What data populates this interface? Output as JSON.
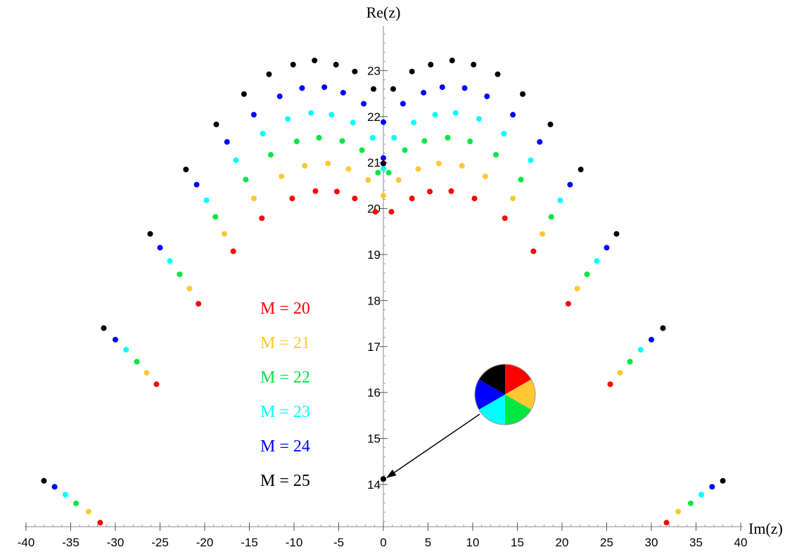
{
  "chart_data": {
    "type": "scatter",
    "xlabel": "Im(z)",
    "ylabel": "Re(z)",
    "xlim": [
      -40,
      40
    ],
    "ylim": [
      13.2,
      23.9
    ],
    "x_ticks": [
      -40,
      -35,
      -30,
      -25,
      -20,
      -15,
      -10,
      -5,
      0,
      5,
      10,
      15,
      20,
      25,
      30,
      35,
      40
    ],
    "y_ticks": [
      14,
      15,
      16,
      17,
      18,
      19,
      20,
      21,
      22,
      23
    ],
    "grid": false,
    "legend_position": "left-center",
    "series": [
      {
        "name": "M = 20",
        "color": "#ff0000",
        "points": [
          [
            -31.7,
            13.17
          ],
          [
            -25.4,
            16.18
          ],
          [
            -20.7,
            17.93
          ],
          [
            -16.8,
            19.07
          ],
          [
            -13.6,
            19.79
          ],
          [
            -10.2,
            20.22
          ],
          [
            -7.6,
            20.38
          ],
          [
            -5.2,
            20.37
          ],
          [
            -3.2,
            20.22
          ],
          [
            -0.9,
            19.93
          ],
          [
            0.9,
            19.93
          ],
          [
            3.2,
            20.22
          ],
          [
            5.2,
            20.37
          ],
          [
            7.6,
            20.38
          ],
          [
            10.2,
            20.22
          ],
          [
            13.6,
            19.79
          ],
          [
            16.8,
            19.07
          ],
          [
            20.7,
            17.93
          ],
          [
            25.4,
            16.18
          ],
          [
            31.7,
            13.17
          ],
          [
            0,
            14.12
          ]
        ]
      },
      {
        "name": "M = 21",
        "color": "#ffc832",
        "points": [
          [
            -33.0,
            13.41
          ],
          [
            -26.5,
            16.43
          ],
          [
            -21.7,
            18.26
          ],
          [
            -17.8,
            19.45
          ],
          [
            -14.5,
            20.22
          ],
          [
            -11.4,
            20.7
          ],
          [
            -8.8,
            20.93
          ],
          [
            -6.2,
            20.98
          ],
          [
            -3.9,
            20.86
          ],
          [
            -1.7,
            20.62
          ],
          [
            0,
            20.28
          ],
          [
            1.7,
            20.62
          ],
          [
            3.9,
            20.86
          ],
          [
            6.2,
            20.98
          ],
          [
            8.8,
            20.93
          ],
          [
            11.4,
            20.7
          ],
          [
            14.5,
            20.22
          ],
          [
            17.8,
            19.45
          ],
          [
            21.7,
            18.26
          ],
          [
            26.5,
            16.43
          ],
          [
            33.0,
            13.41
          ],
          [
            0,
            14.12
          ]
        ]
      },
      {
        "name": "M = 22",
        "color": "#00e641",
        "points": [
          [
            -34.4,
            13.59
          ],
          [
            -27.6,
            16.67
          ],
          [
            -22.8,
            18.57
          ],
          [
            -18.8,
            19.82
          ],
          [
            -15.4,
            20.63
          ],
          [
            -12.6,
            21.17
          ],
          [
            -9.7,
            21.46
          ],
          [
            -7.2,
            21.54
          ],
          [
            -4.6,
            21.47
          ],
          [
            -2.4,
            21.27
          ],
          [
            -0.6,
            20.78
          ],
          [
            0.6,
            20.78
          ],
          [
            2.4,
            21.27
          ],
          [
            4.6,
            21.47
          ],
          [
            7.2,
            21.54
          ],
          [
            9.7,
            21.46
          ],
          [
            12.6,
            21.17
          ],
          [
            15.4,
            20.63
          ],
          [
            18.8,
            19.82
          ],
          [
            22.8,
            18.57
          ],
          [
            27.6,
            16.67
          ],
          [
            34.4,
            13.59
          ],
          [
            0,
            14.12
          ]
        ]
      },
      {
        "name": "M = 23",
        "color": "#00ffff",
        "points": [
          [
            -35.6,
            13.78
          ],
          [
            -28.8,
            16.93
          ],
          [
            -23.9,
            18.86
          ],
          [
            -19.8,
            20.18
          ],
          [
            -16.5,
            21.05
          ],
          [
            -13.5,
            21.63
          ],
          [
            -10.7,
            21.95
          ],
          [
            -8.1,
            22.08
          ],
          [
            -5.8,
            22.04
          ],
          [
            -3.4,
            21.87
          ],
          [
            -1.2,
            21.54
          ],
          [
            0,
            20.87
          ],
          [
            1.2,
            21.54
          ],
          [
            3.4,
            21.87
          ],
          [
            5.8,
            22.04
          ],
          [
            8.1,
            22.08
          ],
          [
            10.7,
            21.95
          ],
          [
            13.5,
            21.63
          ],
          [
            16.5,
            21.05
          ],
          [
            19.8,
            20.18
          ],
          [
            23.9,
            18.86
          ],
          [
            28.8,
            16.93
          ],
          [
            35.6,
            13.78
          ],
          [
            0,
            14.12
          ]
        ]
      },
      {
        "name": "M = 24",
        "color": "#0000ff",
        "points": [
          [
            -36.8,
            13.95
          ],
          [
            -30.0,
            17.15
          ],
          [
            -25.0,
            19.15
          ],
          [
            -20.9,
            20.52
          ],
          [
            -17.5,
            21.45
          ],
          [
            -14.5,
            22.04
          ],
          [
            -11.6,
            22.44
          ],
          [
            -9.1,
            22.62
          ],
          [
            -6.6,
            22.64
          ],
          [
            -4.5,
            22.52
          ],
          [
            -2.2,
            22.28
          ],
          [
            0,
            21.88
          ],
          [
            0,
            21.1
          ],
          [
            2.2,
            22.28
          ],
          [
            4.5,
            22.52
          ],
          [
            6.6,
            22.64
          ],
          [
            9.1,
            22.62
          ],
          [
            11.6,
            22.44
          ],
          [
            14.5,
            22.04
          ],
          [
            17.5,
            21.45
          ],
          [
            20.9,
            20.52
          ],
          [
            25.0,
            19.15
          ],
          [
            30.0,
            17.15
          ],
          [
            36.8,
            13.95
          ],
          [
            0,
            14.12
          ]
        ]
      },
      {
        "name": "M = 25",
        "color": "#000000",
        "points": [
          [
            -38.0,
            14.08
          ],
          [
            -31.3,
            17.4
          ],
          [
            -26.1,
            19.45
          ],
          [
            -22.1,
            20.85
          ],
          [
            -18.7,
            21.83
          ],
          [
            -15.6,
            22.49
          ],
          [
            -12.8,
            22.92
          ],
          [
            -10.1,
            23.13
          ],
          [
            -7.7,
            23.22
          ],
          [
            -5.3,
            23.13
          ],
          [
            -3.2,
            22.98
          ],
          [
            -1.1,
            22.6
          ],
          [
            0,
            20.98
          ],
          [
            1.1,
            22.6
          ],
          [
            3.2,
            22.98
          ],
          [
            5.3,
            23.13
          ],
          [
            7.7,
            23.22
          ],
          [
            10.1,
            23.13
          ],
          [
            12.8,
            22.92
          ],
          [
            15.6,
            22.49
          ],
          [
            18.7,
            21.83
          ],
          [
            22.1,
            20.85
          ],
          [
            26.1,
            19.45
          ],
          [
            31.3,
            17.4
          ],
          [
            38.0,
            14.08
          ],
          [
            0,
            14.12
          ]
        ]
      }
    ],
    "annotation": {
      "point": [
        0,
        14.12
      ],
      "description": "magnified six-colour marker with arrow pointing to coincident points"
    }
  }
}
